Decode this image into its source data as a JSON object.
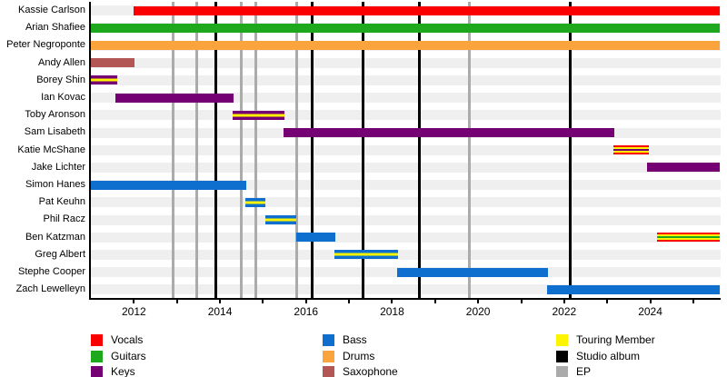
{
  "colors": {
    "vocals": "#fb0000",
    "guitars": "#1ea81e",
    "keys": "#740074",
    "bass": "#0e6fcf",
    "drums": "#fba33c",
    "saxophone": "#b25656",
    "touring": "#fdf500",
    "album": "#000000",
    "ep": "#ababab",
    "row_track": "#efefef",
    "axis": "#000000"
  },
  "chart_data": {
    "type": "gantt",
    "title": "",
    "x_axis": {
      "range": [
        2011,
        2025.62
      ],
      "tick_years": [
        2012,
        2014,
        2016,
        2018,
        2020,
        2022,
        2024
      ],
      "minor_tick_step": 1,
      "grid": "release-event-lines"
    },
    "members": [
      {
        "name": "Kassie Carlson",
        "bars": [
          {
            "start": 2012.0,
            "end": 2025.62,
            "stripes": [
              "vocals"
            ]
          }
        ]
      },
      {
        "name": "Arian Shafiee",
        "bars": [
          {
            "start": 2011.0,
            "end": 2025.62,
            "stripes": [
              "guitars"
            ]
          }
        ]
      },
      {
        "name": "Peter Negroponte",
        "bars": [
          {
            "start": 2011.0,
            "end": 2025.62,
            "stripes": [
              "drums"
            ]
          }
        ]
      },
      {
        "name": "Andy Allen",
        "bars": [
          {
            "start": 2011.0,
            "end": 2012.01,
            "stripes": [
              "saxophone"
            ]
          }
        ]
      },
      {
        "name": "Borey Shin",
        "bars": [
          {
            "start": 2011.0,
            "end": 2011.61,
            "stripes": [
              "keys",
              "touring",
              "keys"
            ]
          }
        ]
      },
      {
        "name": "Ian Kovac",
        "bars": [
          {
            "start": 2011.57,
            "end": 2014.31,
            "stripes": [
              "keys"
            ]
          }
        ]
      },
      {
        "name": "Toby Aronson",
        "bars": [
          {
            "start": 2014.29,
            "end": 2015.49,
            "stripes": [
              "keys",
              "touring",
              "keys"
            ]
          }
        ]
      },
      {
        "name": "Sam Lisabeth",
        "bars": [
          {
            "start": 2015.47,
            "end": 2023.17,
            "stripes": [
              "keys"
            ]
          }
        ]
      },
      {
        "name": "Katie McShane",
        "bars": [
          {
            "start": 2023.15,
            "end": 2023.97,
            "stripes": [
              "vocals",
              "touring",
              "keys",
              "touring",
              "vocals"
            ]
          }
        ]
      },
      {
        "name": "Jake Lichter",
        "bars": [
          {
            "start": 2023.93,
            "end": 2025.62,
            "stripes": [
              "keys"
            ]
          }
        ]
      },
      {
        "name": "Simon Hanes",
        "bars": [
          {
            "start": 2011.0,
            "end": 2014.61,
            "stripes": [
              "bass"
            ]
          }
        ]
      },
      {
        "name": "Pat Keuhn",
        "bars": [
          {
            "start": 2014.59,
            "end": 2015.05,
            "stripes": [
              "bass",
              "touring",
              "bass"
            ]
          }
        ]
      },
      {
        "name": "Phil Racz",
        "bars": [
          {
            "start": 2015.05,
            "end": 2015.77,
            "stripes": [
              "bass",
              "touring",
              "bass"
            ]
          }
        ]
      },
      {
        "name": "Ben Katzman",
        "bars": [
          {
            "start": 2015.77,
            "end": 2016.68,
            "stripes": [
              "bass"
            ]
          },
          {
            "start": 2024.16,
            "end": 2025.62,
            "stripes": [
              "vocals",
              "touring",
              "guitars",
              "touring",
              "vocals"
            ]
          }
        ]
      },
      {
        "name": "Greg Albert",
        "bars": [
          {
            "start": 2016.65,
            "end": 2018.13,
            "stripes": [
              "bass",
              "touring",
              "bass"
            ]
          }
        ]
      },
      {
        "name": "Stephe Cooper",
        "bars": [
          {
            "start": 2018.11,
            "end": 2021.63,
            "stripes": [
              "bass"
            ]
          }
        ]
      },
      {
        "name": "Zach Lewelleyn",
        "bars": [
          {
            "start": 2021.61,
            "end": 2025.62,
            "stripes": [
              "bass"
            ]
          }
        ]
      }
    ],
    "releases": {
      "studio_albums": [
        2013.9,
        2016.15,
        2017.33,
        2018.63,
        2022.14
      ],
      "eps": [
        2012.92,
        2013.47,
        2014.5,
        2014.84,
        2015.79,
        2019.8
      ]
    }
  },
  "legend": {
    "columns": [
      [
        {
          "label": "Vocals",
          "color_key": "vocals"
        },
        {
          "label": "Guitars",
          "color_key": "guitars"
        },
        {
          "label": "Keys",
          "color_key": "keys"
        }
      ],
      [
        {
          "label": "Bass",
          "color_key": "bass"
        },
        {
          "label": "Drums",
          "color_key": "drums"
        },
        {
          "label": "Saxophone",
          "color_key": "saxophone"
        }
      ],
      [
        {
          "label": "Touring Member",
          "color_key": "touring"
        },
        {
          "label": "Studio album",
          "color_key": "album"
        },
        {
          "label": "EP",
          "color_key": "ep"
        }
      ]
    ]
  }
}
